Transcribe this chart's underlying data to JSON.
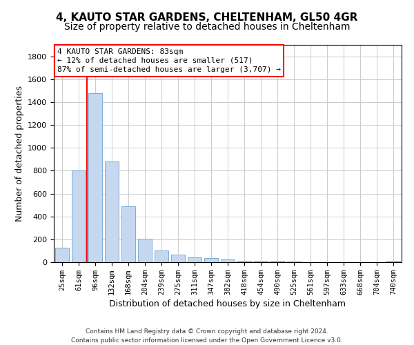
{
  "title": "4, KAUTO STAR GARDENS, CHELTENHAM, GL50 4GR",
  "subtitle": "Size of property relative to detached houses in Cheltenham",
  "xlabel": "Distribution of detached houses by size in Cheltenham",
  "ylabel": "Number of detached properties",
  "footer_line1": "Contains HM Land Registry data © Crown copyright and database right 2024.",
  "footer_line2": "Contains public sector information licensed under the Open Government Licence v3.0.",
  "bar_labels": [
    "25sqm",
    "61sqm",
    "96sqm",
    "132sqm",
    "168sqm",
    "204sqm",
    "239sqm",
    "275sqm",
    "311sqm",
    "347sqm",
    "382sqm",
    "418sqm",
    "454sqm",
    "490sqm",
    "525sqm",
    "561sqm",
    "597sqm",
    "633sqm",
    "668sqm",
    "704sqm",
    "740sqm"
  ],
  "bar_values": [
    125,
    800,
    1480,
    880,
    490,
    205,
    100,
    65,
    40,
    35,
    25,
    15,
    15,
    10,
    5,
    3,
    2,
    1,
    1,
    1,
    15
  ],
  "bar_color": "#c5d8f0",
  "bar_edge_color": "#7aadd4",
  "ylim": [
    0,
    1900
  ],
  "yticks": [
    0,
    200,
    400,
    600,
    800,
    1000,
    1200,
    1400,
    1600,
    1800
  ],
  "redline_x": 1.5,
  "annotation_line1": "4 KAUTO STAR GARDENS: 83sqm",
  "annotation_line2": "← 12% of detached houses are smaller (517)",
  "annotation_line3": "87% of semi-detached houses are larger (3,707) →",
  "grid_color": "#cccccc",
  "background_color": "#ffffff",
  "title_fontsize": 11,
  "subtitle_fontsize": 10,
  "tick_fontsize": 7.5,
  "ylabel_fontsize": 9,
  "xlabel_fontsize": 9,
  "annotation_fontsize": 8,
  "footer_fontsize": 6.5
}
